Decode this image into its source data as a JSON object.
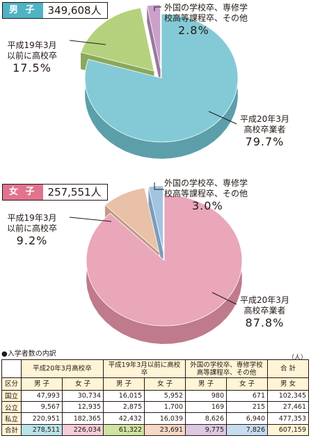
{
  "male": {
    "tag": "男 子",
    "count": "349,608人",
    "labels": [
      {
        "line1": "平成20年3月",
        "line2": "高校卒業者",
        "pct": "79.7%"
      },
      {
        "line1": "平成19年3月",
        "line2": "以前に高校卒",
        "pct": "17.5%"
      },
      {
        "line1": "外国の学校卒、専修学",
        "line2": "校高等課程卒、その他",
        "pct": "2.8%"
      }
    ]
  },
  "female": {
    "tag": "女 子",
    "count": "257,551人",
    "labels": [
      {
        "line1": "平成20年3月",
        "line2": "高校卒業者",
        "pct": "87.8%"
      },
      {
        "line1": "平成19年3月",
        "line2": "以前に高校卒",
        "pct": "9.2%"
      },
      {
        "line1": "外国の学校卒、専修学",
        "line2": "校高等課程卒、その他",
        "pct": "3.0%"
      }
    ]
  },
  "chart_data": [
    {
      "type": "pie",
      "categories": [
        "平成20年3月高校卒業者",
        "平成19年3月以前に高校卒",
        "外国の学校卒、専修学校高等課程卒、その他"
      ],
      "values": [
        79.7,
        17.5,
        2.8
      ],
      "colors": [
        "#84cad6",
        "#b4d27d",
        "#c9a1cb"
      ],
      "side_colors": [
        "#5c9fab",
        "#8aa85a",
        "#9a779c"
      ]
    },
    {
      "type": "pie",
      "categories": [
        "平成20年3月高校卒業者",
        "平成19年3月以前に高校卒",
        "外国の学校卒、専修学校高等課程卒、その他"
      ],
      "values": [
        87.8,
        9.2,
        3.0
      ],
      "colors": [
        "#e9a7b9",
        "#e9c0a8",
        "#a3c4e1"
      ],
      "side_colors": [
        "#bf7a8c",
        "#c29a84",
        "#7a9cbb"
      ]
    }
  ],
  "table": {
    "title": "●入学者数の内訳",
    "unit": "（人）",
    "header_groups": [
      "平成20年3月高校卒",
      "平成19年3月以前に高校卒",
      "外国の学校卒、専修学校高等課程卒、その他",
      "合 計"
    ],
    "subheaders": [
      "区分",
      "男 子",
      "女 子",
      "男 子",
      "女 子",
      "男 子",
      "女 子",
      "男 女"
    ],
    "rows": [
      {
        "label": "国立",
        "cells": [
          "47,993",
          "30,734",
          "16,015",
          "5,952",
          "980",
          "671",
          "102,345"
        ]
      },
      {
        "label": "公立",
        "cells": [
          "9,567",
          "12,935",
          "2,875",
          "1,700",
          "169",
          "215",
          "27,461"
        ]
      },
      {
        "label": "私立",
        "cells": [
          "220,951",
          "182,365",
          "42,432",
          "16,039",
          "8,626",
          "6,940",
          "477,353"
        ]
      },
      {
        "label": "合計",
        "cells": [
          "278,511",
          "226,034",
          "61,322",
          "23,691",
          "9,775",
          "7,826",
          "607,159"
        ]
      }
    ]
  }
}
